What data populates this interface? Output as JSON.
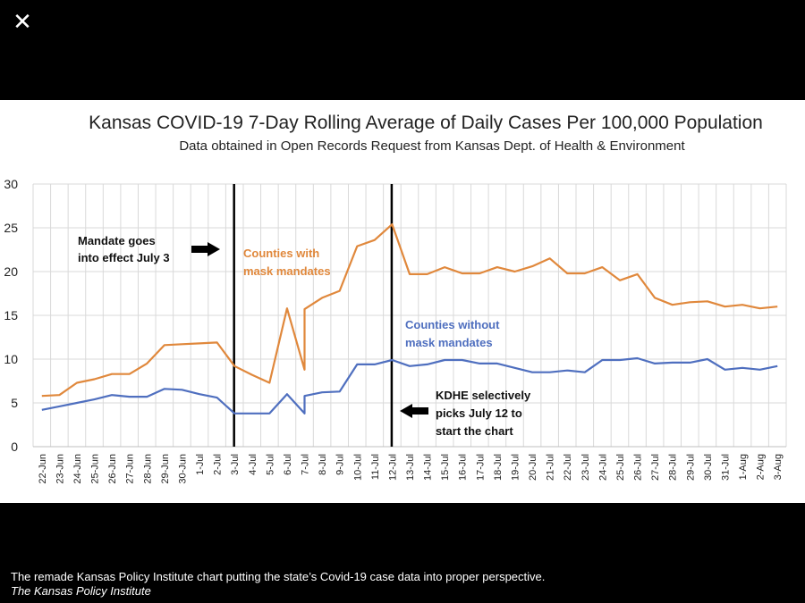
{
  "viewer": {
    "close_icon": "✕"
  },
  "caption": {
    "text": "The remade Kansas Policy Institute chart putting the state’s Covid-19 case data into proper perspective.",
    "credit": "The Kansas Policy Institute"
  },
  "colors": {
    "orange": "#E0883C",
    "blue": "#4F6FBF",
    "black": "#000000"
  },
  "chart_data": {
    "type": "line",
    "title": "Kansas COVID-19 7-Day Rolling Average of Daily Cases Per 100,000 Population",
    "subtitle": "Data obtained in Open Records Request from Kansas Dept. of Health & Environment",
    "xlabel": "",
    "ylabel": "",
    "ylim": [
      0,
      30
    ],
    "yticks": [
      0,
      5,
      10,
      15,
      20,
      25,
      30
    ],
    "grid": true,
    "categories": [
      "22-Jun",
      "23-Jun",
      "24-Jun",
      "25-Jun",
      "26-Jun",
      "27-Jun",
      "28-Jun",
      "29-Jun",
      "30-Jun",
      "1-Jul",
      "2-Jul",
      "3-Jul",
      "4-Jul",
      "5-Jul",
      "6-Jul",
      "7-Jul",
      "8-Jul",
      "9-Jul",
      "10-Jul",
      "11-Jul",
      "12-Jul",
      "13-Jul",
      "14-Jul",
      "15-Jul",
      "16-Jul",
      "17-Jul",
      "18-Jul",
      "19-Jul",
      "20-Jul",
      "21-Jul",
      "22-Jul",
      "23-Jul",
      "24-Jul",
      "25-Jul",
      "26-Jul",
      "27-Jul",
      "28-Jul",
      "29-Jul",
      "30-Jul",
      "31-Jul",
      "1-Aug",
      "2-Aug",
      "3-Aug"
    ],
    "series": [
      {
        "name": "Counties with mask mandates",
        "color": "#E0883C",
        "points": [
          [
            0,
            5.8
          ],
          [
            1,
            5.9
          ],
          [
            2,
            7.3
          ],
          [
            3,
            7.7
          ],
          [
            4,
            8.3
          ],
          [
            5,
            8.3
          ],
          [
            6,
            9.5
          ],
          [
            7,
            11.6
          ],
          [
            8,
            11.7
          ],
          [
            9,
            11.8
          ],
          [
            10,
            11.9
          ],
          [
            11,
            9.2
          ],
          [
            12,
            8.2
          ],
          [
            13,
            7.3
          ],
          [
            14,
            15.8
          ],
          [
            15,
            8.8
          ],
          [
            15,
            15.7
          ],
          [
            16,
            17.0
          ],
          [
            17,
            17.8
          ],
          [
            18,
            22.9
          ],
          [
            19,
            23.6
          ],
          [
            20,
            25.4
          ],
          [
            21,
            19.7
          ],
          [
            22,
            19.7
          ],
          [
            23,
            20.5
          ],
          [
            24,
            19.8
          ],
          [
            25,
            19.8
          ],
          [
            26,
            20.5
          ],
          [
            27,
            20.0
          ],
          [
            28,
            20.6
          ],
          [
            29,
            21.5
          ],
          [
            30,
            19.8
          ],
          [
            31,
            19.8
          ],
          [
            32,
            20.5
          ],
          [
            33,
            19.0
          ],
          [
            34,
            19.7
          ],
          [
            35,
            17.0
          ],
          [
            36,
            16.2
          ],
          [
            37,
            16.5
          ],
          [
            38,
            16.6
          ],
          [
            39,
            16.0
          ],
          [
            40,
            16.2
          ],
          [
            41,
            15.8
          ],
          [
            42,
            16.0
          ]
        ]
      },
      {
        "name": "Counties without mask mandates",
        "color": "#4F6FBF",
        "points": [
          [
            0,
            4.2
          ],
          [
            1,
            4.6
          ],
          [
            2,
            5.0
          ],
          [
            3,
            5.4
          ],
          [
            4,
            5.9
          ],
          [
            5,
            5.7
          ],
          [
            6,
            5.7
          ],
          [
            7,
            6.6
          ],
          [
            8,
            6.5
          ],
          [
            9,
            6.0
          ],
          [
            10,
            5.6
          ],
          [
            11,
            3.8
          ],
          [
            12,
            3.8
          ],
          [
            13,
            3.8
          ],
          [
            14,
            6.0
          ],
          [
            15,
            3.8
          ],
          [
            15,
            5.8
          ],
          [
            16,
            6.2
          ],
          [
            17,
            6.3
          ],
          [
            18,
            9.4
          ],
          [
            19,
            9.4
          ],
          [
            20,
            9.9
          ],
          [
            21,
            9.2
          ],
          [
            22,
            9.4
          ],
          [
            23,
            9.9
          ],
          [
            24,
            9.9
          ],
          [
            25,
            9.5
          ],
          [
            26,
            9.5
          ],
          [
            27,
            9.0
          ],
          [
            28,
            8.5
          ],
          [
            29,
            8.5
          ],
          [
            30,
            8.7
          ],
          [
            31,
            8.5
          ],
          [
            32,
            9.9
          ],
          [
            33,
            9.9
          ],
          [
            34,
            10.1
          ],
          [
            35,
            9.5
          ],
          [
            36,
            9.6
          ],
          [
            37,
            9.6
          ],
          [
            38,
            10.0
          ],
          [
            39,
            8.8
          ],
          [
            40,
            9.0
          ],
          [
            41,
            8.8
          ],
          [
            42,
            9.2
          ]
        ]
      }
    ],
    "vlines": [
      {
        "name": "mandate-line",
        "at_category": "3-Jul"
      },
      {
        "name": "chart-start-line",
        "at_category": "12-Jul"
      }
    ],
    "annotations": {
      "mandate_line1": "Mandate goes",
      "mandate_line2": "into effect July 3",
      "kdhe_line1": "KDHE selectively",
      "kdhe_line2": "picks July 12 to",
      "kdhe_line3": "start the chart",
      "with_line1": "Counties with",
      "with_line2": "mask mandates",
      "without_line1": "Counties without",
      "without_line2": "mask mandates"
    }
  }
}
